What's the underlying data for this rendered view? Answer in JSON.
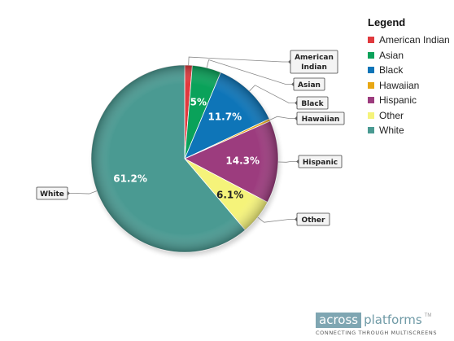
{
  "chart_data": {
    "type": "pie",
    "title": "",
    "slices": [
      {
        "label": "American Indian",
        "value": 1.3,
        "value_label": "",
        "color": "#e03a3e",
        "callout": [
          "American",
          "Indian"
        ]
      },
      {
        "label": "Asian",
        "value": 5.0,
        "value_label": "5%",
        "color": "#0aa25a",
        "callout": [
          "Asian"
        ]
      },
      {
        "label": "Black",
        "value": 11.7,
        "value_label": "11.7%",
        "color": "#0e75b8",
        "callout": [
          "Black"
        ]
      },
      {
        "label": "Hawaiian",
        "value": 0.4,
        "value_label": "",
        "color": "#e8a713",
        "callout": [
          "Hawaiian"
        ]
      },
      {
        "label": "Hispanic",
        "value": 14.3,
        "value_label": "14.3%",
        "color": "#9c3c7e",
        "callout": [
          "Hispanic"
        ]
      },
      {
        "label": "Other",
        "value": 6.1,
        "value_label": "6.1%",
        "color": "#f5f37a",
        "callout": [
          "Other"
        ]
      },
      {
        "label": "White",
        "value": 61.2,
        "value_label": "61.2%",
        "color": "#4a9a92",
        "callout": [
          "White"
        ]
      }
    ],
    "legend": {
      "title": "Legend",
      "placement": "right"
    }
  },
  "branding": {
    "word1": "across",
    "word2": "platforms",
    "trademark": "TM",
    "tagline": "CONNECTING THROUGH MULTISCREENS"
  }
}
